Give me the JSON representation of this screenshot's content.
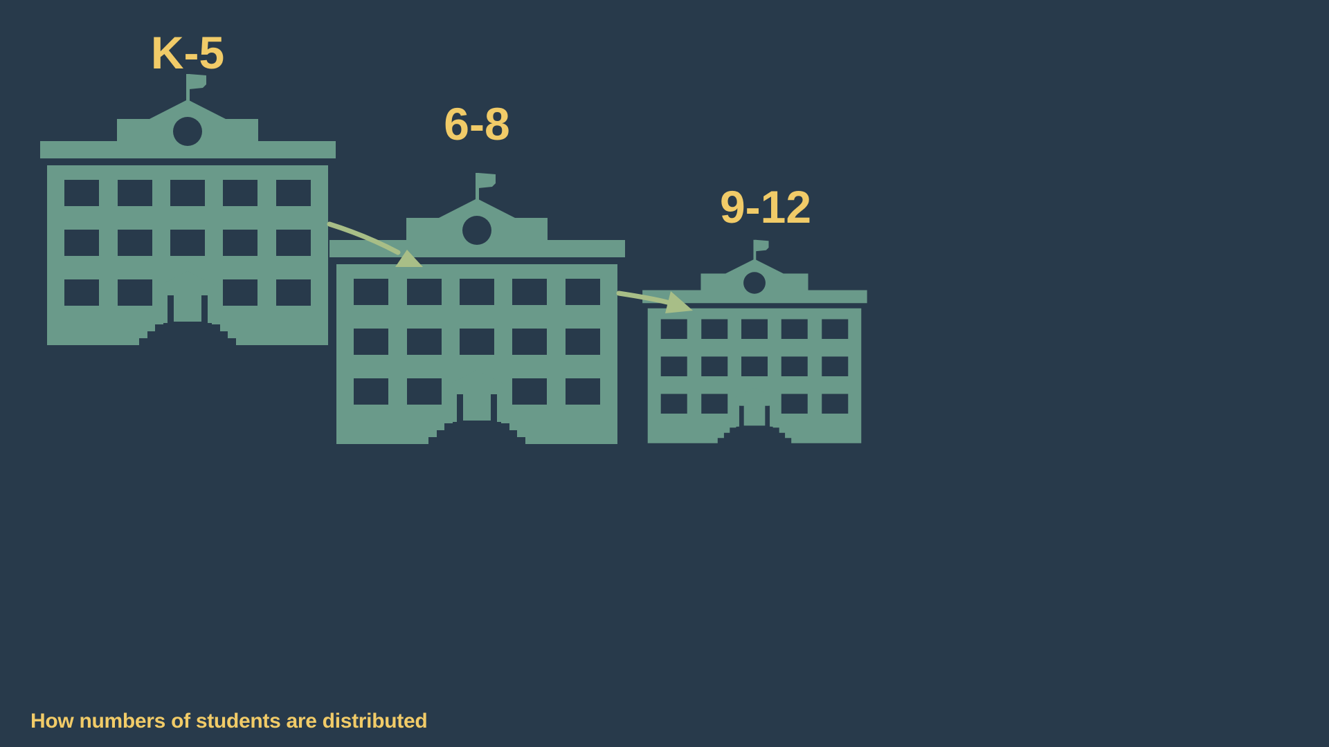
{
  "colors": {
    "background": "#283a4b",
    "building": "#6a9a8a",
    "label": "#f1cb68",
    "arrow": "#a8be87"
  },
  "buildings": [
    {
      "label": "K-5",
      "icon": "school-building-icon"
    },
    {
      "label": "6-8",
      "icon": "school-building-icon"
    },
    {
      "label": "9-12",
      "icon": "school-building-icon"
    }
  ],
  "arrows": [
    {
      "from": "K-5",
      "to": "6-8",
      "icon": "curved-arrow-icon"
    },
    {
      "from": "6-8",
      "to": "9-12",
      "icon": "curved-arrow-icon"
    }
  ],
  "caption": "How numbers of students are distributed"
}
